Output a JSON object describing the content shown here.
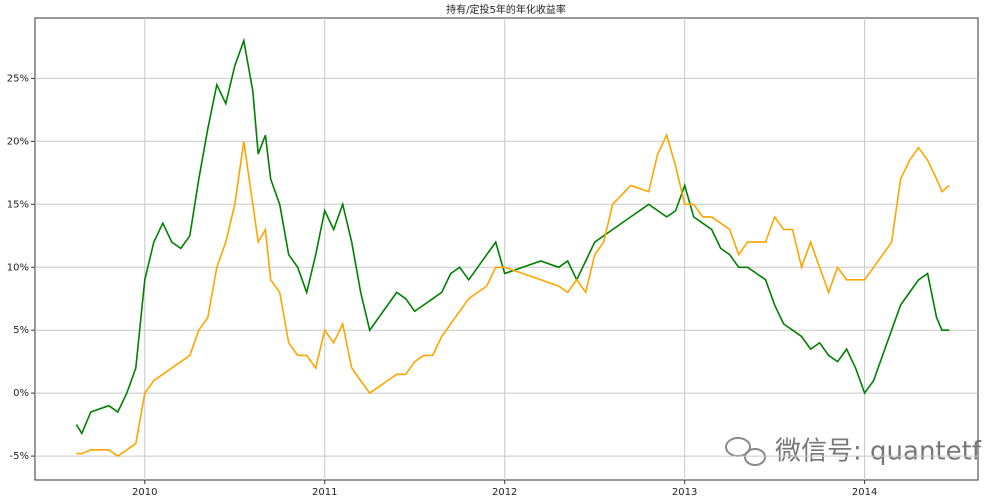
{
  "chart_data": {
    "type": "line",
    "title": "持有/定投5年的年化收益率",
    "annotation": "微信号: quantetf",
    "x": [
      2009.62,
      2009.65,
      2009.7,
      2009.8,
      2009.85,
      2009.9,
      2009.95,
      2010.0,
      2010.05,
      2010.1,
      2010.15,
      2010.2,
      2010.25,
      2010.3,
      2010.35,
      2010.4,
      2010.45,
      2010.5,
      2010.55,
      2010.6,
      2010.63,
      2010.67,
      2010.7,
      2010.75,
      2010.8,
      2010.85,
      2010.9,
      2010.95,
      2011.0,
      2011.05,
      2011.1,
      2011.15,
      2011.2,
      2011.25,
      2011.3,
      2011.35,
      2011.4,
      2011.45,
      2011.5,
      2011.55,
      2011.6,
      2011.65,
      2011.7,
      2011.75,
      2011.8,
      2011.85,
      2011.9,
      2011.95,
      2012.0,
      2012.1,
      2012.2,
      2012.3,
      2012.35,
      2012.4,
      2012.45,
      2012.5,
      2012.55,
      2012.6,
      2012.7,
      2012.8,
      2012.85,
      2012.9,
      2012.95,
      2013.0,
      2013.05,
      2013.1,
      2013.15,
      2013.2,
      2013.25,
      2013.3,
      2013.35,
      2013.4,
      2013.45,
      2013.5,
      2013.55,
      2013.6,
      2013.65,
      2013.7,
      2013.75,
      2013.8,
      2013.85,
      2013.9,
      2013.95,
      2014.0,
      2014.05,
      2014.1,
      2014.15,
      2014.2,
      2014.25,
      2014.3,
      2014.35,
      2014.4,
      2014.43,
      2014.47
    ],
    "series": [
      {
        "color": "#008000",
        "values": [
          -2.5,
          -3.2,
          -1.5,
          -1.0,
          -1.5,
          0,
          2,
          9,
          12,
          13.5,
          12,
          11.5,
          12.5,
          17,
          21,
          24.5,
          23,
          26,
          28,
          24,
          19,
          20.5,
          17,
          15,
          11,
          10,
          8,
          11,
          14.5,
          13,
          15,
          12,
          8,
          5,
          6,
          7,
          8,
          7.5,
          6.5,
          7,
          7.5,
          8,
          9.5,
          10,
          9,
          10,
          11,
          12,
          9.5,
          10,
          10.5,
          10,
          10.5,
          9,
          10.5,
          12,
          12.5,
          13,
          14,
          15,
          14.5,
          14,
          14.5,
          16.5,
          14,
          13.5,
          13,
          11.5,
          11,
          10,
          10,
          9.5,
          9,
          7,
          5.5,
          5,
          4.5,
          3.5,
          4,
          3,
          2.5,
          3.5,
          2,
          0,
          1,
          3,
          5,
          7,
          8,
          9,
          9.5,
          6,
          5,
          5
        ]
      },
      {
        "color": "#ffa500",
        "values": [
          -4.8,
          -4.8,
          -4.5,
          -4.5,
          -5,
          -4.5,
          -4,
          0,
          1,
          1.5,
          2,
          2.5,
          3,
          5,
          6,
          10,
          12,
          15,
          20,
          15,
          12,
          13,
          9,
          8,
          4,
          3,
          3,
          2,
          5,
          4,
          5.5,
          2,
          1,
          0,
          0.5,
          1,
          1.5,
          1.5,
          2.5,
          3,
          3,
          4.5,
          5.5,
          6.5,
          7.5,
          8,
          8.5,
          10,
          10,
          9.5,
          9,
          8.5,
          8,
          9,
          8,
          11,
          12,
          15,
          16.5,
          16,
          19,
          20.5,
          18,
          15,
          15,
          14,
          14,
          13.5,
          13,
          11,
          12,
          12,
          12,
          14,
          13,
          13,
          10,
          12,
          10,
          8,
          10,
          9,
          9,
          9,
          10,
          11,
          12,
          17,
          18.5,
          19.5,
          18.5,
          17,
          16,
          16.5
        ]
      }
    ],
    "xlim": [
      2009.39,
      2014.63
    ],
    "xticks": [
      2010,
      2011,
      2012,
      2013,
      2014
    ],
    "ylim": [
      -6.9,
      29.8
    ],
    "yticks": [
      {
        "value": -5,
        "label": "-5%"
      },
      {
        "value": 0,
        "label": "0%"
      },
      {
        "value": 5,
        "label": "5%"
      },
      {
        "value": 10,
        "label": "10%"
      },
      {
        "value": 15,
        "label": "15%"
      },
      {
        "value": 20,
        "label": "20%"
      },
      {
        "value": 25,
        "label": "25%"
      }
    ],
    "grid": true
  }
}
